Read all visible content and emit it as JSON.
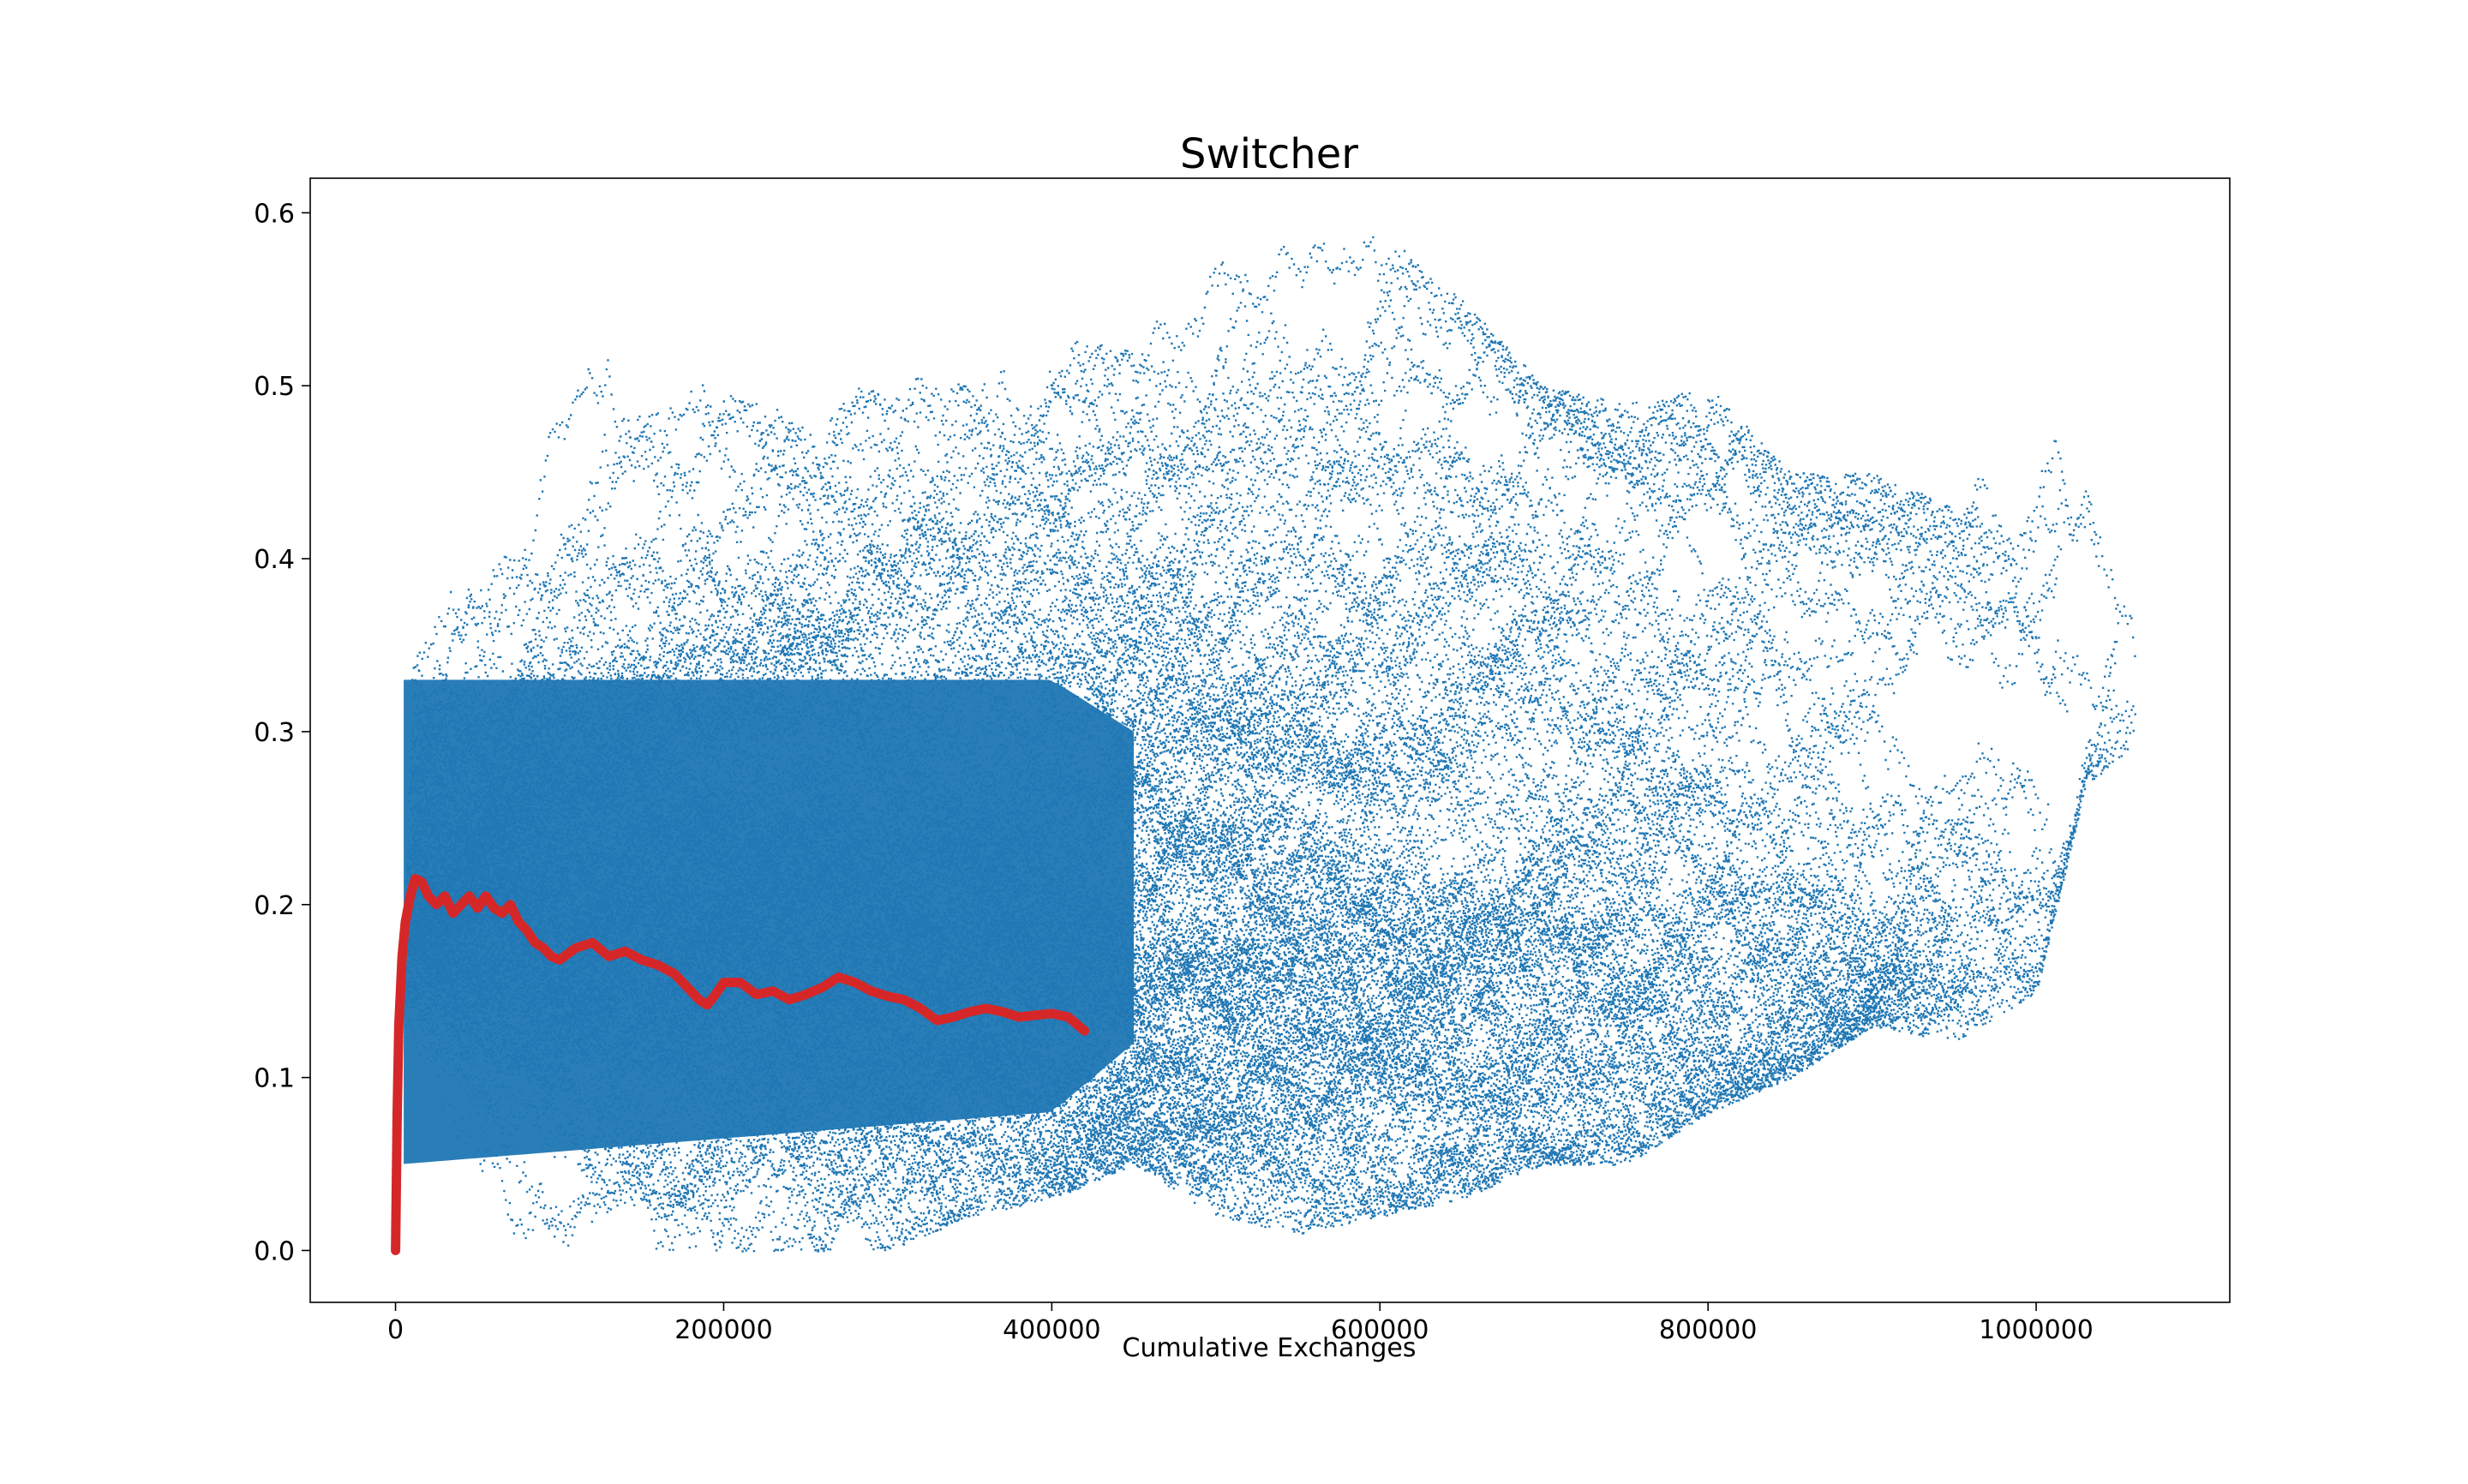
{
  "chart_data": {
    "type": "scatter",
    "title": "Switcher",
    "xlabel": "Cumulative Exchanges",
    "ylabel": "",
    "xlim": [
      -52000,
      1118000
    ],
    "ylim": [
      -0.03,
      0.62
    ],
    "xticks": [
      0,
      200000,
      400000,
      600000,
      800000,
      1000000
    ],
    "xtick_labels": [
      "0",
      "200000",
      "400000",
      "600000",
      "800000",
      "1000000"
    ],
    "yticks": [
      0.0,
      0.1,
      0.2,
      0.3,
      0.4,
      0.5,
      0.6
    ],
    "ytick_labels": [
      "0.0",
      "0.1",
      "0.2",
      "0.3",
      "0.4",
      "0.5",
      "0.6"
    ],
    "grid": false,
    "legend": "none",
    "series": [
      {
        "kind": "scatter",
        "color": "#1f77b4",
        "description_points": "dense cloud of many random-walk trajectories",
        "envelope": {
          "x": [
            0,
            10000,
            50000,
            100000,
            150000,
            200000,
            250000,
            300000,
            350000,
            400000,
            450000,
            500000,
            550000,
            600000,
            650000,
            700000,
            750000,
            800000,
            850000,
            900000,
            950000,
            1000000,
            1030000,
            1060000
          ],
          "y_low": [
            0.0,
            0.05,
            0.0,
            0.0,
            0.0,
            0.0,
            0.0,
            0.0,
            0.02,
            0.03,
            0.05,
            0.02,
            0.01,
            0.02,
            0.03,
            0.05,
            0.05,
            0.08,
            0.1,
            0.13,
            0.12,
            0.15,
            0.27,
            0.29
          ],
          "y_high": [
            0.0,
            0.35,
            0.47,
            0.48,
            0.57,
            0.5,
            0.48,
            0.51,
            0.5,
            0.53,
            0.52,
            0.59,
            0.58,
            0.59,
            0.55,
            0.5,
            0.49,
            0.5,
            0.45,
            0.45,
            0.43,
            0.49,
            0.44,
            0.36
          ]
        },
        "core_band": {
          "x": [
            5000,
            400000,
            450000
          ],
          "y_low": [
            0.05,
            0.08,
            0.12
          ],
          "y_high": [
            0.33,
            0.33,
            0.3
          ]
        }
      },
      {
        "kind": "line",
        "color": "#d62728",
        "x": [
          0,
          1000,
          2000,
          4000,
          6000,
          9000,
          12000,
          16000,
          20000,
          25000,
          30000,
          35000,
          40000,
          45000,
          50000,
          55000,
          60000,
          65000,
          70000,
          75000,
          80000,
          85000,
          90000,
          95000,
          100000,
          110000,
          120000,
          130000,
          140000,
          150000,
          160000,
          170000,
          180000,
          185000,
          190000,
          195000,
          200000,
          210000,
          220000,
          230000,
          240000,
          250000,
          260000,
          270000,
          280000,
          290000,
          300000,
          310000,
          320000,
          330000,
          340000,
          350000,
          360000,
          370000,
          380000,
          390000,
          400000,
          410000,
          420000
        ],
        "y": [
          0.0,
          0.08,
          0.13,
          0.17,
          0.19,
          0.205,
          0.215,
          0.213,
          0.205,
          0.2,
          0.205,
          0.195,
          0.2,
          0.205,
          0.198,
          0.205,
          0.198,
          0.195,
          0.2,
          0.19,
          0.185,
          0.178,
          0.175,
          0.17,
          0.168,
          0.175,
          0.178,
          0.17,
          0.173,
          0.168,
          0.165,
          0.16,
          0.15,
          0.145,
          0.142,
          0.148,
          0.155,
          0.155,
          0.148,
          0.15,
          0.145,
          0.148,
          0.152,
          0.158,
          0.155,
          0.15,
          0.147,
          0.145,
          0.14,
          0.133,
          0.135,
          0.138,
          0.14,
          0.138,
          0.135,
          0.136,
          0.137,
          0.135,
          0.127
        ]
      }
    ]
  }
}
